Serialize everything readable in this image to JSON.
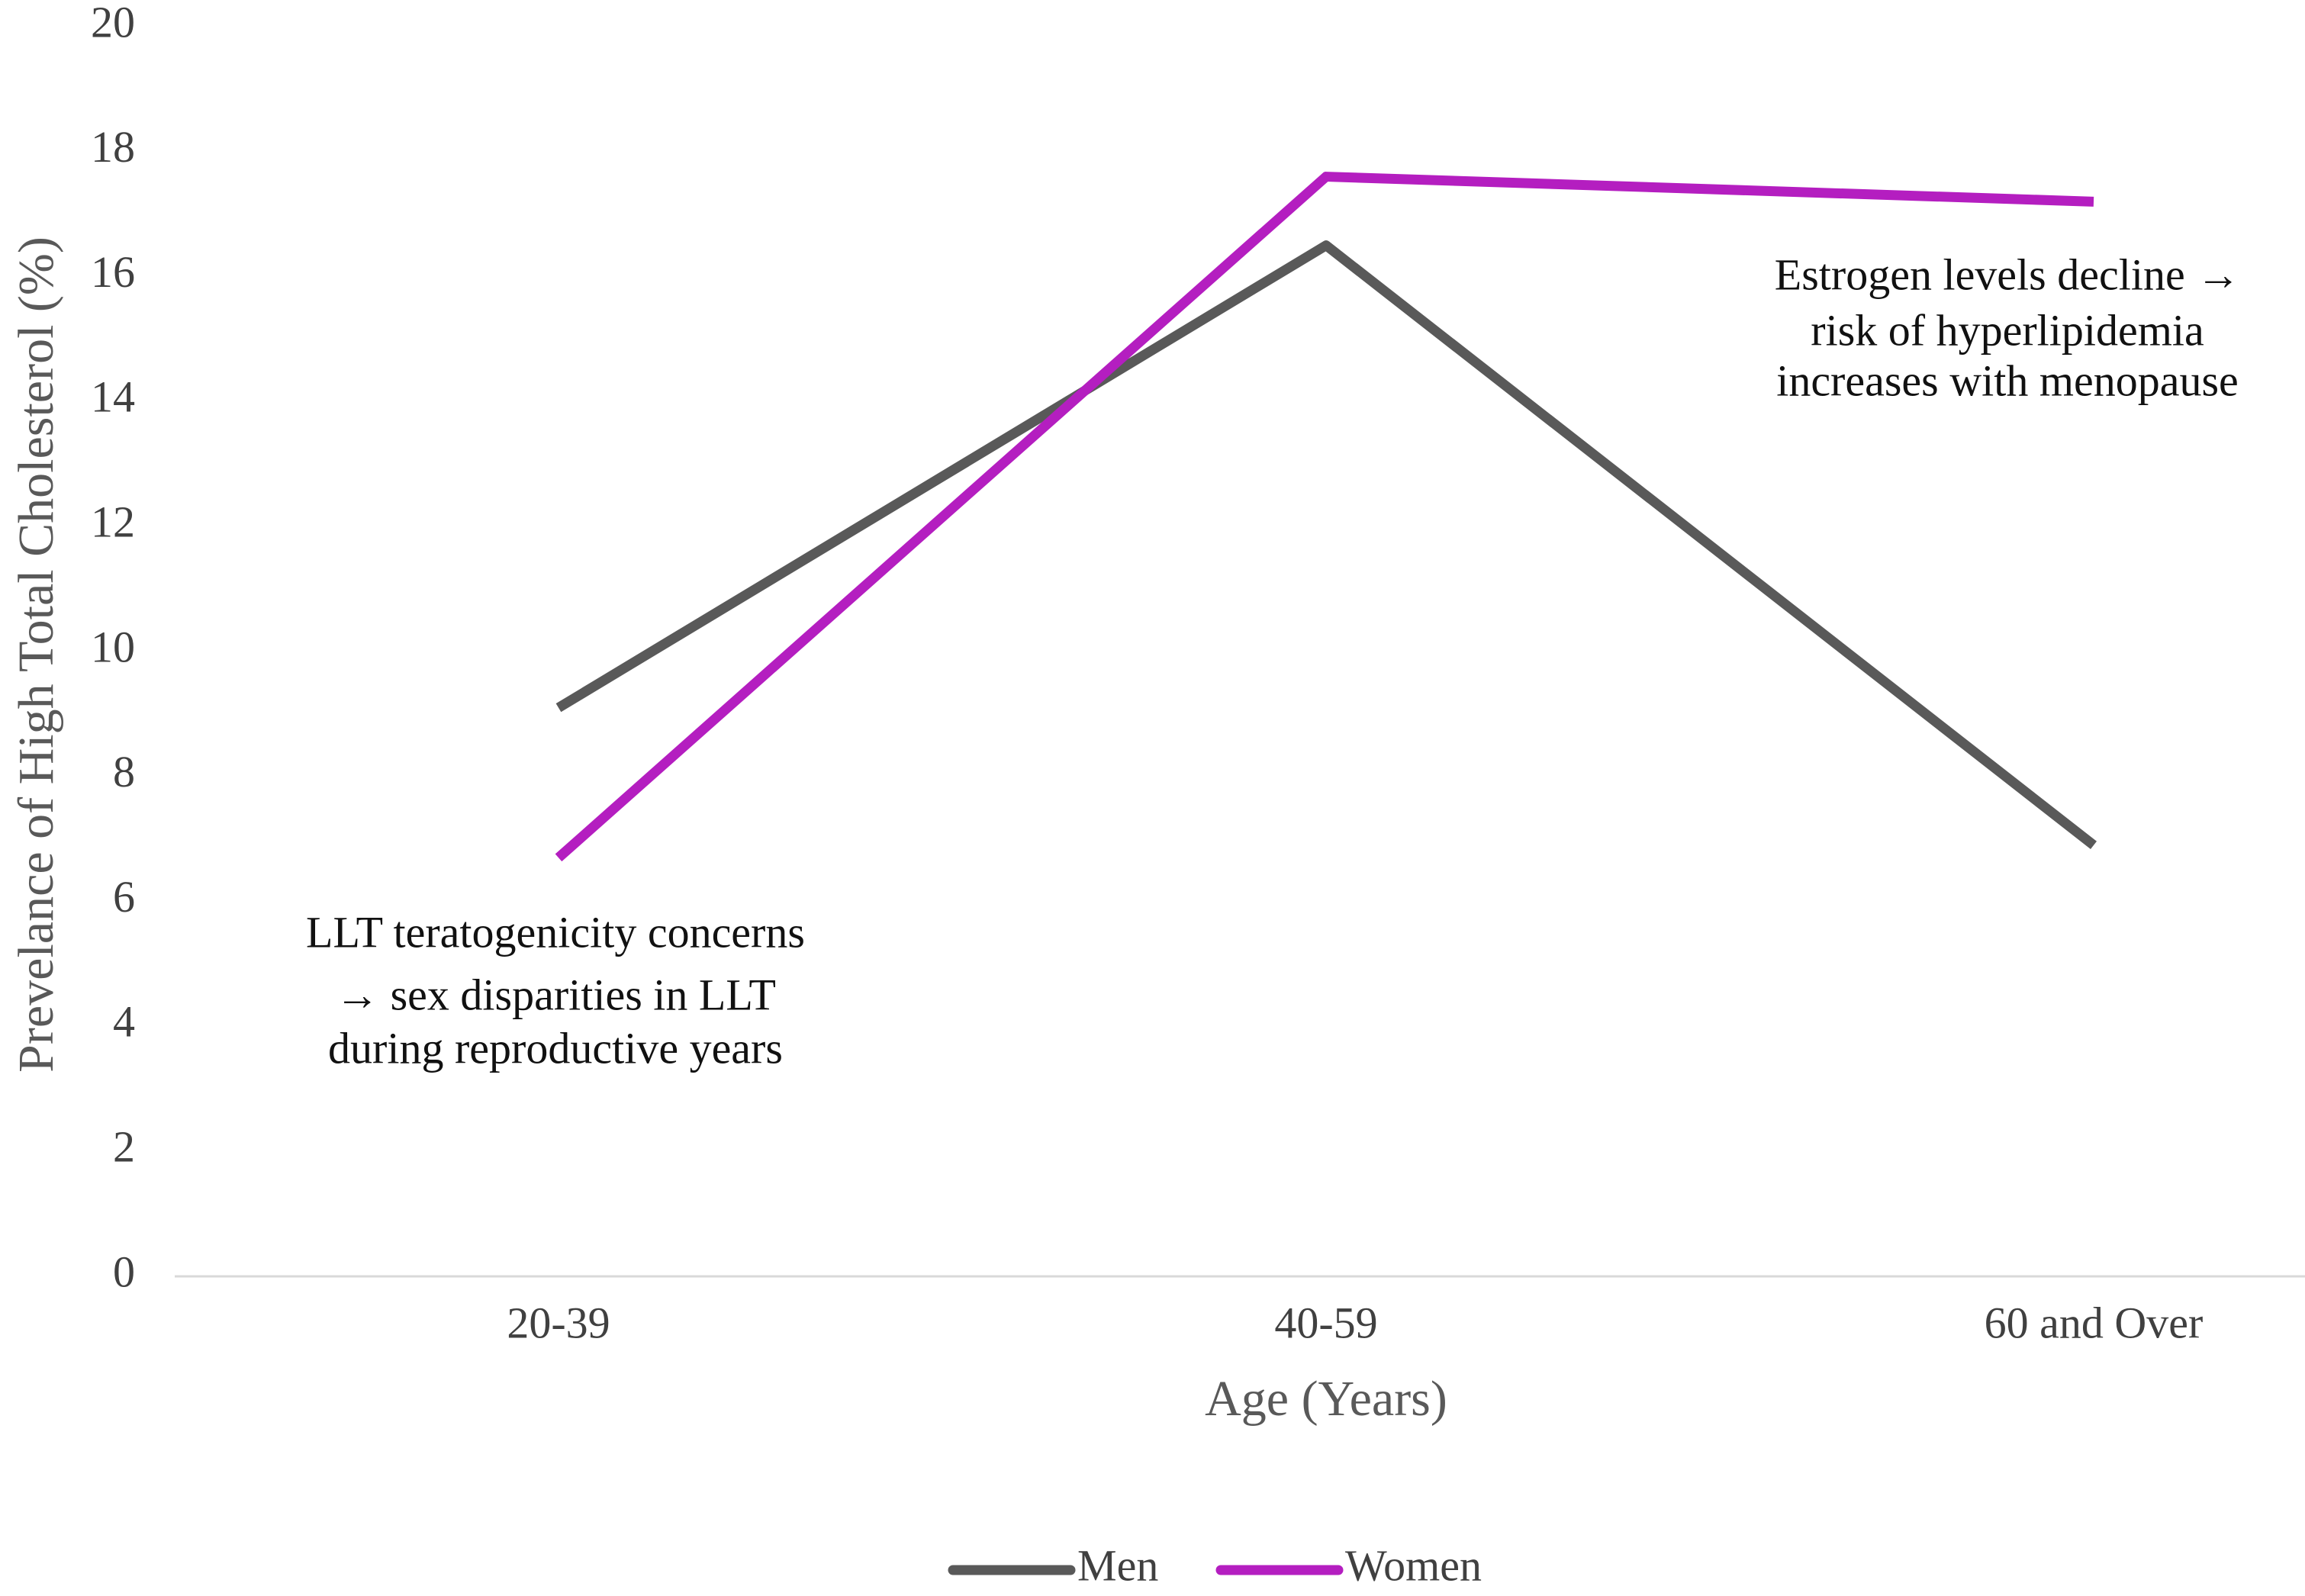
{
  "chart_data": {
    "type": "line",
    "x_label": "Age (Years)",
    "y_label": "Prevelance of High Total Cholesterol (%)",
    "categories": [
      "20-39",
      "40-59",
      "60 and Over"
    ],
    "series": [
      {
        "name": "Men",
        "color": "#595959",
        "values": [
          9.1,
          16.5,
          6.9
        ]
      },
      {
        "name": "Women",
        "color": "#b41ec0",
        "values": [
          6.7,
          17.6,
          17.2
        ]
      }
    ],
    "ylim": [
      0,
      20
    ],
    "yticks": [
      0,
      2,
      4,
      6,
      8,
      10,
      12,
      14,
      16,
      18,
      20
    ],
    "grid": false,
    "legend": "bottom",
    "annotations": [
      [
        "LLT teratogenicity concerns",
        "→ sex disparities in LLT",
        "during reproductive years"
      ],
      [
        "Estrogen levels decline →",
        "risk of hyperlipidemia",
        "increases with menopause"
      ]
    ]
  }
}
